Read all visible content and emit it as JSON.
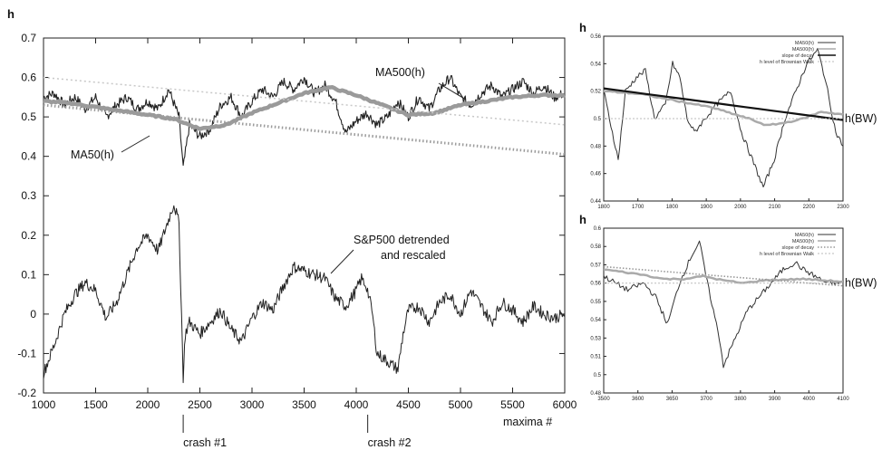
{
  "chart_data": [
    {
      "type": "line",
      "ylabel": "h",
      "xlabel": "maxima #",
      "xlim": [
        1000,
        6000
      ],
      "ylim": [
        -0.2,
        0.7
      ],
      "xticks": [
        "1000",
        "1500",
        "2000",
        "2500",
        "3000",
        "3500",
        "4000",
        "4500",
        "5000",
        "5500",
        "6000"
      ],
      "yticks": [
        "-0.2",
        "-0.1",
        "0",
        "0.1",
        "0.2",
        "0.3",
        "0.4",
        "0.5",
        "0.6",
        "0.7"
      ],
      "grid": false,
      "annotations": [
        {
          "text": "MA500(h)",
          "x": 5050,
          "y": 0.585
        },
        {
          "text": "MA50(h)",
          "x": 1350,
          "y": 0.395
        },
        {
          "text": "S&P500 detrended",
          "x": 4400,
          "y": 0.2
        },
        {
          "text": "and rescaled",
          "x": 4400,
          "y": 0.15
        },
        {
          "text": "crash #1",
          "x": 2340
        },
        {
          "text": "crash #2",
          "x": 4110
        }
      ],
      "series": [
        {
          "name": "MA50(h)",
          "x": [
            1000,
            1100,
            1200,
            1300,
            1400,
            1500,
            1600,
            1700,
            1800,
            1900,
            2000,
            2100,
            2200,
            2300,
            2340,
            2400,
            2500,
            2600,
            2700,
            2800,
            2900,
            3000,
            3100,
            3200,
            3300,
            3400,
            3500,
            3600,
            3700,
            3800,
            3900,
            4000,
            4100,
            4200,
            4300,
            4400,
            4500,
            4600,
            4700,
            4800,
            4900,
            5000,
            5100,
            5200,
            5300,
            5400,
            5500,
            5600,
            5700,
            5800,
            5900,
            6000
          ],
          "values": [
            0.55,
            0.56,
            0.53,
            0.55,
            0.52,
            0.55,
            0.5,
            0.53,
            0.55,
            0.52,
            0.54,
            0.52,
            0.57,
            0.5,
            0.37,
            0.48,
            0.45,
            0.47,
            0.53,
            0.55,
            0.5,
            0.54,
            0.57,
            0.55,
            0.59,
            0.57,
            0.6,
            0.56,
            0.58,
            0.54,
            0.46,
            0.49,
            0.51,
            0.48,
            0.5,
            0.54,
            0.5,
            0.55,
            0.52,
            0.57,
            0.6,
            0.55,
            0.53,
            0.56,
            0.58,
            0.55,
            0.57,
            0.59,
            0.56,
            0.58,
            0.55,
            0.56
          ]
        },
        {
          "name": "MA500(h)",
          "x": [
            1000,
            1250,
            1500,
            1750,
            2000,
            2250,
            2500,
            2750,
            3000,
            3250,
            3500,
            3750,
            4000,
            4250,
            4500,
            4750,
            5000,
            5250,
            5500,
            5750,
            6000
          ],
          "values": [
            0.54,
            0.535,
            0.525,
            0.515,
            0.505,
            0.495,
            0.47,
            0.48,
            0.51,
            0.535,
            0.56,
            0.575,
            0.555,
            0.53,
            0.505,
            0.51,
            0.53,
            0.54,
            0.55,
            0.555,
            0.555
          ]
        },
        {
          "name": "",
          "x": [
            1000,
            6000
          ],
          "values": [
            0.53,
            0.405
          ]
        },
        {
          "name": "",
          "x": [
            1000,
            6000
          ],
          "values": [
            0.6,
            0.48
          ]
        },
        {
          "name": "S&P500 detrended and rescaled",
          "x": [
            1000,
            1100,
            1200,
            1300,
            1400,
            1500,
            1600,
            1700,
            1800,
            1900,
            2000,
            2100,
            2200,
            2250,
            2300,
            2340,
            2360,
            2400,
            2500,
            2600,
            2700,
            2800,
            2900,
            3000,
            3100,
            3200,
            3300,
            3400,
            3500,
            3600,
            3700,
            3800,
            3900,
            4000,
            4050,
            4100,
            4150,
            4200,
            4300,
            4400,
            4450,
            4500,
            4600,
            4700,
            4800,
            4900,
            5000,
            5100,
            5200,
            5300,
            5400,
            5500,
            5600,
            5700,
            5800,
            5900,
            6000
          ],
          "values": [
            -0.15,
            -0.08,
            0.0,
            0.05,
            0.08,
            0.06,
            -0.01,
            0.03,
            0.1,
            0.17,
            0.2,
            0.16,
            0.24,
            0.28,
            0.23,
            -0.16,
            -0.05,
            -0.02,
            -0.05,
            -0.02,
            0.01,
            -0.04,
            -0.07,
            -0.01,
            0.03,
            0.01,
            0.07,
            0.12,
            0.11,
            0.1,
            0.09,
            0.04,
            0.02,
            0.06,
            0.09,
            0.07,
            0.01,
            -0.1,
            -0.12,
            -0.14,
            -0.05,
            0.01,
            0.02,
            -0.02,
            0.03,
            0.05,
            0.0,
            0.06,
            0.02,
            -0.02,
            0.03,
            0.01,
            -0.02,
            0.02,
            0.0,
            -0.01,
            0.0
          ]
        }
      ]
    },
    {
      "type": "line",
      "ylabel": "h",
      "right_label": "h(BW)",
      "xlim": [
        1650,
        2310
      ],
      "ylim": [
        0.44,
        0.56
      ],
      "xticks": [
        "1800",
        "1700",
        "1800",
        "1900",
        "2000",
        "2100",
        "2200",
        "2300"
      ],
      "yticks": [
        "0.44",
        "0.46",
        "0.48",
        "0.5",
        "0.52",
        "0.54",
        "0.56"
      ],
      "legend": [
        "MA50(h)",
        "MA500(h)",
        "slope of decay",
        "h level of Brownian Walk"
      ],
      "legend_position": "top-right",
      "series": [
        {
          "name": "MA50(h)",
          "x": [
            1650,
            1690,
            1710,
            1740,
            1765,
            1790,
            1820,
            1840,
            1860,
            1880,
            1900,
            1930,
            1960,
            2000,
            2030,
            2060,
            2090,
            2120,
            2150,
            2180,
            2210,
            2240,
            2260,
            2290,
            2310
          ],
          "values": [
            0.52,
            0.47,
            0.52,
            0.53,
            0.535,
            0.5,
            0.51,
            0.54,
            0.53,
            0.5,
            0.49,
            0.5,
            0.51,
            0.52,
            0.49,
            0.47,
            0.45,
            0.47,
            0.5,
            0.52,
            0.54,
            0.55,
            0.53,
            0.49,
            0.48
          ]
        },
        {
          "name": "MA500(h)",
          "x": [
            1650,
            1750,
            1850,
            1950,
            2050,
            2100,
            2150,
            2200,
            2250,
            2310
          ],
          "values": [
            0.52,
            0.518,
            0.513,
            0.508,
            0.5,
            0.495,
            0.497,
            0.5,
            0.505,
            0.503
          ]
        },
        {
          "name": "slope of decay",
          "x": [
            1650,
            2310
          ],
          "values": [
            0.522,
            0.499
          ]
        },
        {
          "name": "h level of Brownian Walk",
          "x": [
            1650,
            2310
          ],
          "values": [
            0.5,
            0.5
          ]
        }
      ]
    },
    {
      "type": "line",
      "ylabel": "h",
      "right_label": "h(BW)",
      "xlim": [
        3500,
        4100
      ],
      "ylim": [
        0.48,
        0.6
      ],
      "xticks": [
        "3500",
        "3600",
        "3650",
        "3700",
        "3800",
        "3900",
        "4000",
        "4100"
      ],
      "yticks": [
        "0.48",
        "0.5",
        "0.51",
        "0.53",
        "0.54",
        "0.55",
        "0.56",
        "0.57",
        "0.58",
        "0.6"
      ],
      "legend": [
        "MA50(h)",
        "MA500(h)",
        "slope of decay",
        "h level of Brownian Walk"
      ],
      "legend_position": "top-right",
      "series": [
        {
          "name": "MA50(h)",
          "x": [
            3500,
            3530,
            3560,
            3600,
            3630,
            3660,
            3690,
            3720,
            3740,
            3760,
            3790,
            3800,
            3830,
            3860,
            3890,
            3920,
            3950,
            3980,
            4000,
            4030,
            4060,
            4100
          ],
          "values": [
            0.565,
            0.56,
            0.555,
            0.56,
            0.55,
            0.53,
            0.56,
            0.58,
            0.59,
            0.56,
            0.52,
            0.5,
            0.52,
            0.54,
            0.55,
            0.56,
            0.57,
            0.575,
            0.57,
            0.565,
            0.56,
            0.56
          ]
        },
        {
          "name": "MA500(h)",
          "x": [
            3500,
            3600,
            3650,
            3700,
            3750,
            3800,
            3850,
            3900,
            4000,
            4100
          ],
          "values": [
            0.57,
            0.566,
            0.563,
            0.563,
            0.565,
            0.562,
            0.56,
            0.562,
            0.563,
            0.561
          ]
        },
        {
          "name": "slope of decay",
          "x": [
            3500,
            4100
          ],
          "values": [
            0.572,
            0.558
          ]
        },
        {
          "name": "h level of Brownian Walk",
          "x": [
            3500,
            4100
          ],
          "values": [
            0.56,
            0.56
          ]
        }
      ]
    }
  ]
}
